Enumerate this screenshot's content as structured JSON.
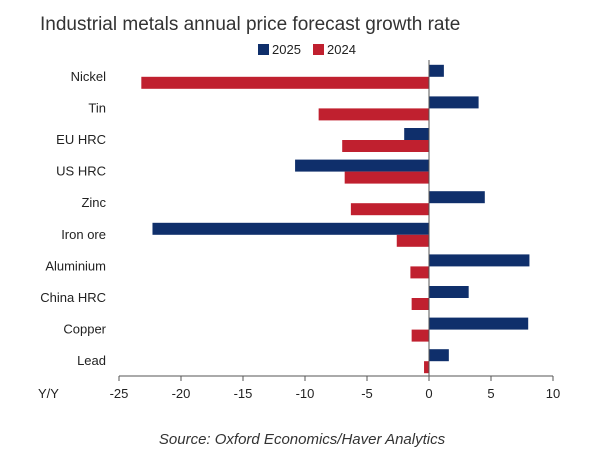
{
  "chart_data": {
    "type": "bar",
    "orientation": "horizontal",
    "title": "Industrial metals annual price forecast growth rate",
    "xlabel": "Y/Y",
    "ylabel": "",
    "xlim": [
      -25,
      10
    ],
    "xticks": [
      "-25",
      "-20",
      "-15",
      "-10",
      "-5",
      "0",
      "5",
      "10"
    ],
    "grid": false,
    "legend_position": "top",
    "categories": [
      "Nickel",
      "Tin",
      "EU HRC",
      "US HRC",
      "Zinc",
      "Iron ore",
      "Aluminium",
      "China HRC",
      "Copper",
      "Lead"
    ],
    "series": [
      {
        "name": "2025",
        "color": "#0f2f6b",
        "values": [
          1.2,
          4.0,
          -2.0,
          -10.8,
          4.5,
          -22.3,
          8.1,
          3.2,
          8.0,
          1.6
        ]
      },
      {
        "name": "2024",
        "color": "#c0202f",
        "values": [
          -23.2,
          -8.9,
          -7.0,
          -6.8,
          -6.3,
          -2.6,
          -1.5,
          -1.4,
          -1.4,
          -0.4
        ]
      }
    ],
    "source": "Source: Oxford Economics/Haver Analytics"
  }
}
